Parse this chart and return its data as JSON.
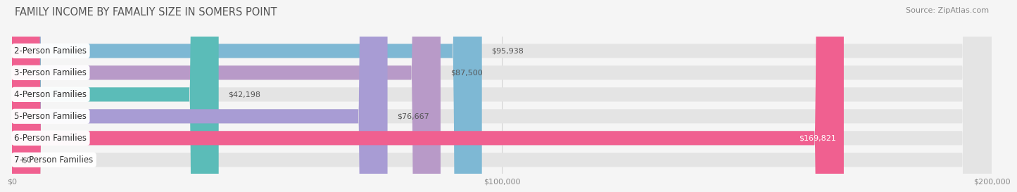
{
  "title": "FAMILY INCOME BY FAMALIY SIZE IN SOMERS POINT",
  "source": "Source: ZipAtlas.com",
  "categories": [
    "2-Person Families",
    "3-Person Families",
    "4-Person Families",
    "5-Person Families",
    "6-Person Families",
    "7+ Person Families"
  ],
  "values": [
    95938,
    87500,
    42198,
    76667,
    169821,
    0
  ],
  "bar_colors": [
    "#7eb8d4",
    "#b89ac8",
    "#5bbcb8",
    "#a89cd4",
    "#f06090",
    "#f5c89a"
  ],
  "bar_bg_color": "#e4e4e4",
  "value_labels": [
    "$95,938",
    "$87,500",
    "$42,198",
    "$76,667",
    "$169,821",
    "$0"
  ],
  "xlabel_ticks": [
    "$0",
    "$100,000",
    "$200,000"
  ],
  "xlabel_tick_vals": [
    0,
    100000,
    200000
  ],
  "xlim": [
    0,
    200000
  ],
  "background_color": "#f5f5f5",
  "title_fontsize": 10.5,
  "source_fontsize": 8,
  "label_fontsize": 8.5,
  "value_fontsize": 8,
  "bar_height": 0.65
}
